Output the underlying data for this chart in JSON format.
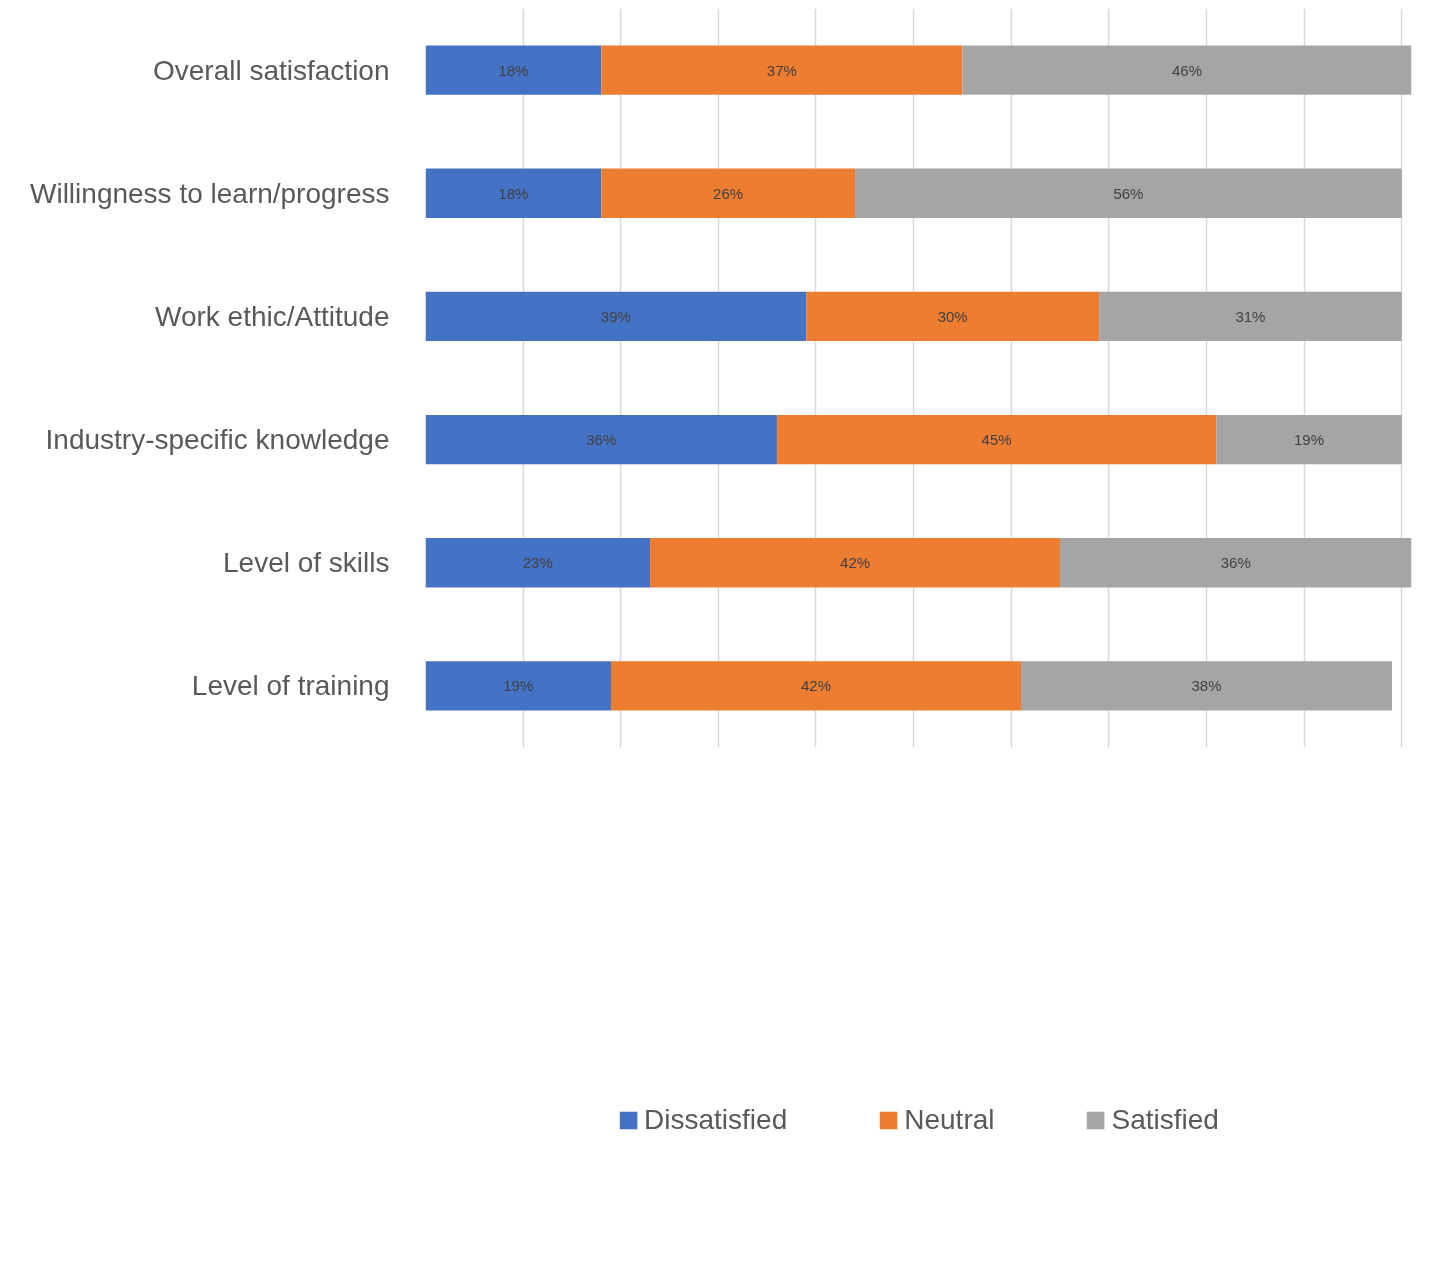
{
  "chart_data": {
    "type": "bar",
    "orientation": "horizontal",
    "stacked": true,
    "categories": [
      "Overall satisfaction",
      "Willingness to learn/progress",
      "Work ethic/Attitude",
      "Industry-specific knowledge",
      "Level of skills",
      "Level of training"
    ],
    "series": [
      {
        "name": "Dissatisfied",
        "color": "#4472c4",
        "values": [
          18,
          18,
          39,
          36,
          23,
          19
        ],
        "value_labels": [
          "18%",
          "18%",
          "39%",
          "36%",
          "23%",
          "19%"
        ]
      },
      {
        "name": "Neutral",
        "color": "#ed7d31",
        "values": [
          37,
          26,
          30,
          45,
          42,
          42
        ],
        "value_labels": [
          "37%",
          "26%",
          "30%",
          "45%",
          "42%",
          "42%"
        ]
      },
      {
        "name": "Satisfied",
        "color": "#a5a5a5",
        "values": [
          46,
          56,
          31,
          19,
          36,
          38
        ],
        "value_labels": [
          "46%",
          "56%",
          "31%",
          "19%",
          "36%",
          "38%"
        ]
      }
    ],
    "xlim": [
      0,
      101
    ],
    "tick_labels": "y",
    "grid": "x",
    "legend": "bottom"
  }
}
